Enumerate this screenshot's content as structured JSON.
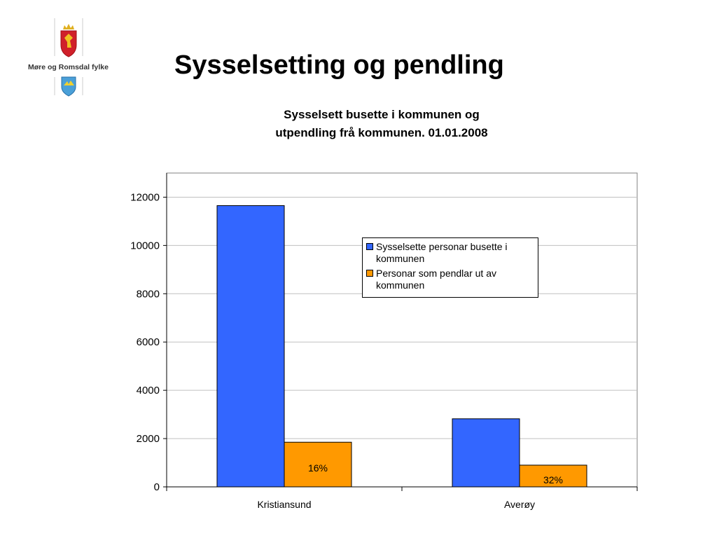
{
  "logo": {
    "organisation": "Møre og Romsdal fylke",
    "icons": [
      "norway-coat-of-arms-icon",
      "more-og-romsdal-shield-icon"
    ]
  },
  "header": {
    "title": "Sysselsetting og pendling"
  },
  "colors": {
    "series_1": "#3366ff",
    "series_2": "#ff9900",
    "gridline": "#c0c0c0",
    "plot_border": "#808080"
  },
  "chart_data": {
    "type": "bar",
    "title_lines": [
      "Sysselsett busette i kommunen og",
      "utpendling frå kommunen. 01.01.2008"
    ],
    "categories": [
      "Kristiansund",
      "Averøy"
    ],
    "series": [
      {
        "name_lines": [
          "Sysselsette personar busette i",
          "kommunen"
        ],
        "values": [
          11650,
          2820
        ],
        "labels": [
          "",
          ""
        ]
      },
      {
        "name_lines": [
          "Personar som pendlar ut av",
          "kommunen"
        ],
        "values": [
          1850,
          900
        ],
        "labels": [
          "16%",
          "32%"
        ]
      }
    ],
    "yticks": [
      0,
      2000,
      4000,
      6000,
      8000,
      10000,
      12000
    ],
    "ylim": [
      0,
      13000
    ],
    "grid": true,
    "legend_position": "right"
  }
}
